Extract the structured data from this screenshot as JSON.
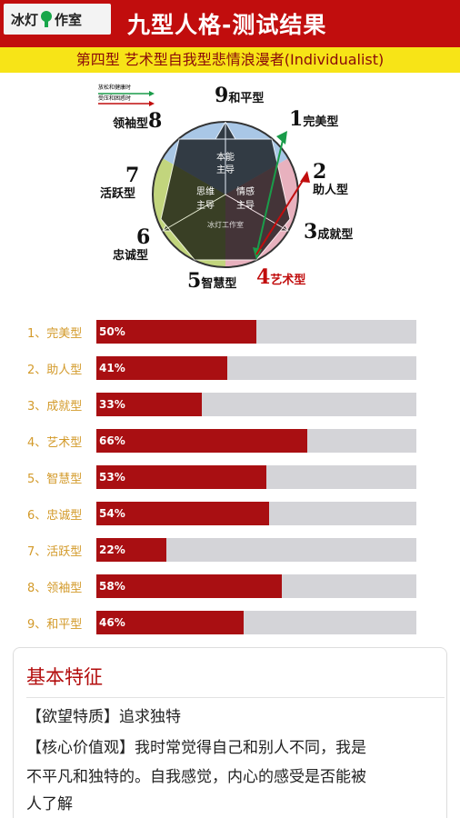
{
  "header": {
    "logo_left": "冰灯",
    "logo_right": "作室",
    "title": "九型人格-测试结果"
  },
  "result": {
    "type_line": "第四型 艺术型自我型悲情浪漫者(Individualist)"
  },
  "diagram": {
    "legend": [
      "放松和健康时",
      "受压和困惑时"
    ],
    "segments": [
      "本能主导",
      "思维主导",
      "情感主导"
    ],
    "watermark": "冰灯工作室",
    "types": [
      {
        "n": "9",
        "label": "和平型"
      },
      {
        "n": "1",
        "label": "完美型"
      },
      {
        "n": "2",
        "label": "助人型"
      },
      {
        "n": "3",
        "label": "成就型"
      },
      {
        "n": "4",
        "label": "艺术型"
      },
      {
        "n": "5",
        "label": "智慧型"
      },
      {
        "n": "6",
        "label": "忠诚型"
      },
      {
        "n": "7",
        "label": "活跃型"
      },
      {
        "n": "8",
        "label": "领袖型"
      }
    ],
    "highlight_type": "4",
    "colors": {
      "instinct": "#a9c7e6",
      "thinking": "#c2d57d",
      "feeling": "#e8b1be",
      "accent": "#c10d0d",
      "arrow_green": "#1a9c4a"
    }
  },
  "scores": [
    {
      "label": "1、完美型",
      "pct": 50,
      "text": "50%"
    },
    {
      "label": "2、助人型",
      "pct": 41,
      "text": "41%"
    },
    {
      "label": "3、成就型",
      "pct": 33,
      "text": "33%"
    },
    {
      "label": "4、艺术型",
      "pct": 66,
      "text": "66%"
    },
    {
      "label": "5、智慧型",
      "pct": 53,
      "text": "53%"
    },
    {
      "label": "6、忠诚型",
      "pct": 54,
      "text": "54%"
    },
    {
      "label": "7、活跃型",
      "pct": 22,
      "text": "22%"
    },
    {
      "label": "8、领袖型",
      "pct": 58,
      "text": "58%"
    },
    {
      "label": "9、和平型",
      "pct": 46,
      "text": "46%"
    }
  ],
  "card": {
    "title": "基本特征",
    "line1": "【欲望特质】追求独特",
    "line2": "【核心价值观】我时常觉得自己和别人不同，我是",
    "line3": "不平凡和独特的。自我感觉，内心的感受是否能被",
    "line4": "人了解"
  }
}
